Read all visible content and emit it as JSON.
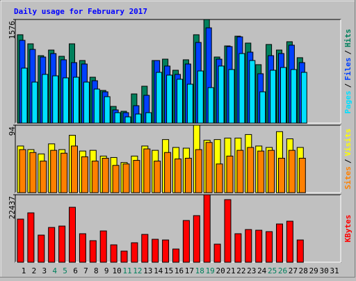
{
  "chart_data": [
    {
      "type": "bar",
      "title": "Daily usage for February 2017",
      "title_color": "#0000ff",
      "ylim": [
        0,
        1576
      ],
      "yticks": [
        1576
      ],
      "legend_separator": "/",
      "series": [
        {
          "name": "Hits",
          "color": "#00805c",
          "values": [
            1344,
            1206,
            1026,
            1111,
            1016,
            1206,
            952,
            698,
            497,
            254,
            180,
            444,
            561,
            952,
            973,
            804,
            963,
            1344,
            1576,
            1005,
            1174,
            1322,
            1217,
            889,
            1196,
            1111,
            1238,
            995,
            null,
            null,
            null
          ]
        },
        {
          "name": "Files",
          "color": "#0040ff",
          "values": [
            1259,
            1121,
            1005,
            1058,
            963,
            920,
            899,
            645,
            476,
            201,
            159,
            265,
            423,
            952,
            868,
            741,
            899,
            1227,
            1449,
            973,
            1164,
            1312,
            1079,
            751,
            1026,
            1058,
            1185,
            920,
            null,
            null,
            null
          ]
        },
        {
          "name": "Pages",
          "color": "#00e0ff",
          "values": [
            836,
            624,
            741,
            719,
            688,
            698,
            624,
            518,
            402,
            159,
            95,
            138,
            159,
            772,
            730,
            667,
            592,
            793,
            540,
            868,
            815,
            1058,
            952,
            476,
            804,
            846,
            815,
            772,
            null,
            null,
            null
          ]
        }
      ]
    },
    {
      "type": "bar",
      "ylim": [
        0,
        94
      ],
      "yticks": [
        94
      ],
      "legend_separator": "/",
      "series": [
        {
          "name": "Visits",
          "color": "#ffff00",
          "values": [
            65,
            60,
            54,
            68,
            60,
            80,
            58,
            59,
            51,
            49,
            42,
            51,
            65,
            59,
            74,
            63,
            62,
            94,
            73,
            74,
            76,
            76,
            81,
            65,
            63,
            85,
            75,
            63,
            null,
            null,
            null
          ]
        },
        {
          "name": "Sites",
          "color": "#ff8000",
          "values": [
            60,
            56,
            44,
            59,
            55,
            65,
            50,
            44,
            48,
            38,
            40,
            45,
            61,
            44,
            56,
            47,
            48,
            60,
            70,
            40,
            51,
            59,
            63,
            58,
            59,
            48,
            59,
            48,
            null,
            null,
            null
          ]
        }
      ]
    },
    {
      "type": "bar",
      "ylim": [
        0,
        22437
      ],
      "yticks": [
        22437
      ],
      "categories": [
        "1",
        "2",
        "3",
        "4",
        "5",
        "6",
        "7",
        "8",
        "9",
        "10",
        "11",
        "12",
        "13",
        "14",
        "15",
        "16",
        "17",
        "18",
        "19",
        "20",
        "21",
        "22",
        "23",
        "24",
        "25",
        "26",
        "27",
        "28",
        "29",
        "30",
        "31"
      ],
      "category_colors": [
        "#000000",
        "#000000",
        "#000000",
        "#00805c",
        "#00805c",
        "#000000",
        "#000000",
        "#000000",
        "#000000",
        "#000000",
        "#00805c",
        "#00805c",
        "#000000",
        "#000000",
        "#000000",
        "#000000",
        "#000000",
        "#00805c",
        "#00805c",
        "#000000",
        "#000000",
        "#000000",
        "#000000",
        "#000000",
        "#00805c",
        "#00805c",
        "#000000",
        "#000000",
        "#000000",
        "#000000",
        "#000000"
      ],
      "series": [
        {
          "name": "KBytes",
          "color": "#ff0000",
          "values": [
            14341,
            16422,
            9021,
            11565,
            12028,
            18273,
            9483,
            7170,
            10409,
            5783,
            3701,
            6476,
            9252,
            7633,
            7402,
            4395,
            13878,
            15497,
            22437,
            6014,
            20817,
            9483,
            10871,
            10640,
            10177,
            12721,
            13647,
            7402,
            null,
            null,
            null
          ]
        }
      ]
    }
  ]
}
